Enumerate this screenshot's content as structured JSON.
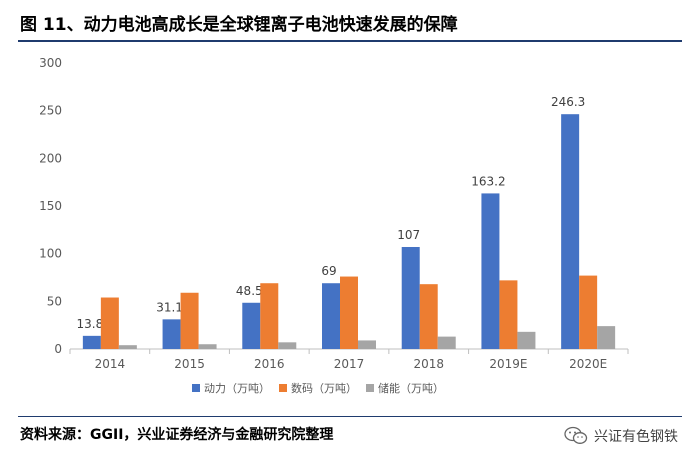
{
  "title": "图 11、动力电池高成长是全球锂离子电池快速发展的保障",
  "source": "资料来源：GGII，兴业证券经济与金融研究院整理",
  "watermark": {
    "icon": "wechat-icon",
    "text": "兴证有色钢铁"
  },
  "chart_data": {
    "type": "bar",
    "categories": [
      "2014",
      "2015",
      "2016",
      "2017",
      "2018",
      "2019E",
      "2020E"
    ],
    "series": [
      {
        "name": "动力（万吨）",
        "color": "#4472c4",
        "values": [
          13.8,
          31.1,
          48.5,
          69,
          107,
          163.2,
          246.3
        ],
        "data_labels": [
          "13.8",
          "31.1",
          "48.5",
          "69",
          "107",
          "163.2",
          "246.3"
        ]
      },
      {
        "name": "数码（万吨）",
        "color": "#ed7d31",
        "values": [
          54,
          59,
          69,
          76,
          68,
          72,
          77
        ]
      },
      {
        "name": "储能（万吨）",
        "color": "#a5a5a5",
        "values": [
          4,
          5,
          7,
          9,
          13,
          18,
          24
        ]
      }
    ],
    "ylim": [
      0,
      300
    ],
    "yticks": [
      0,
      50,
      100,
      150,
      200,
      250,
      300
    ],
    "grid": false,
    "legend": "bottom"
  }
}
